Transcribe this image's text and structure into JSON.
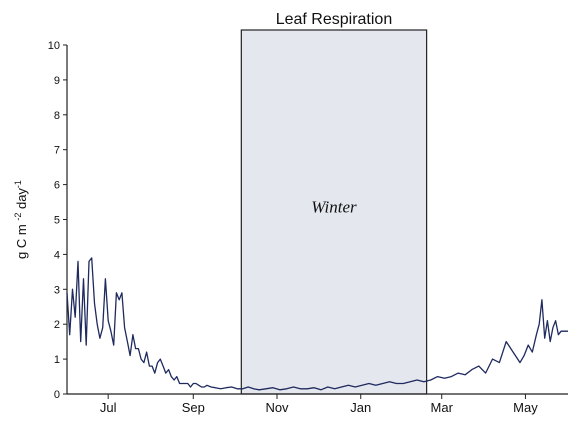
{
  "chart_data": {
    "type": "line",
    "title": "Leaf Respiration",
    "ylabel": "g C m -2 day -1",
    "ylabel_parts": {
      "main1": "g C m ",
      "exp1": "-2",
      "main2": " day",
      "exp2": "-1"
    },
    "xlabel": "",
    "ylim": [
      0,
      10
    ],
    "yticks": [
      "0",
      "1",
      "2",
      "3",
      "4",
      "5",
      "6",
      "7",
      "8",
      "9",
      "10"
    ],
    "xticklabels": [
      "Jul",
      "Sep",
      "Nov",
      "Jan",
      "Mar",
      "May"
    ],
    "xticks_day": [
      30,
      92,
      153,
      214,
      273,
      334
    ],
    "xlim_day": [
      0,
      365
    ],
    "grid": false,
    "legend": "none",
    "annotation": {
      "text": "Winter",
      "region_day": [
        127,
        262
      ],
      "fill": "#e4e7ee"
    },
    "series": [
      {
        "color": "#1f2a5e",
        "x_day": [
          0,
          2,
          4,
          6,
          8,
          10,
          12,
          14,
          16,
          18,
          20,
          22,
          24,
          26,
          28,
          30,
          32,
          34,
          36,
          38,
          40,
          42,
          44,
          46,
          48,
          50,
          52,
          54,
          56,
          58,
          60,
          62,
          64,
          66,
          68,
          70,
          72,
          74,
          76,
          78,
          80,
          82,
          84,
          86,
          88,
          90,
          92,
          94,
          96,
          98,
          100,
          102,
          105,
          108,
          112,
          116,
          120,
          124,
          128,
          132,
          136,
          140,
          145,
          150,
          155,
          160,
          165,
          170,
          175,
          180,
          185,
          190,
          195,
          200,
          205,
          210,
          215,
          220,
          225,
          230,
          235,
          240,
          245,
          250,
          255,
          260,
          265,
          270,
          275,
          280,
          285,
          290,
          295,
          300,
          305,
          310,
          315,
          320,
          325,
          330,
          333,
          336,
          339,
          342,
          344,
          346,
          348,
          350,
          352,
          354,
          356,
          358,
          360,
          362,
          365
        ],
        "values": [
          2.9,
          1.7,
          3.0,
          2.2,
          3.8,
          1.5,
          3.3,
          1.4,
          3.8,
          3.9,
          2.6,
          2.0,
          1.6,
          1.9,
          3.3,
          2.1,
          1.8,
          1.4,
          2.9,
          2.7,
          2.9,
          1.9,
          1.5,
          1.1,
          1.7,
          1.3,
          1.3,
          1.0,
          0.9,
          1.2,
          0.8,
          0.8,
          0.6,
          0.9,
          1.0,
          0.8,
          0.6,
          0.7,
          0.5,
          0.4,
          0.5,
          0.3,
          0.3,
          0.3,
          0.3,
          0.2,
          0.3,
          0.3,
          0.25,
          0.2,
          0.2,
          0.25,
          0.2,
          0.18,
          0.15,
          0.18,
          0.2,
          0.15,
          0.15,
          0.2,
          0.15,
          0.12,
          0.15,
          0.18,
          0.12,
          0.15,
          0.2,
          0.15,
          0.15,
          0.18,
          0.12,
          0.2,
          0.15,
          0.2,
          0.25,
          0.2,
          0.25,
          0.3,
          0.25,
          0.3,
          0.35,
          0.3,
          0.3,
          0.35,
          0.4,
          0.35,
          0.4,
          0.5,
          0.45,
          0.5,
          0.6,
          0.55,
          0.7,
          0.8,
          0.6,
          1.0,
          0.9,
          1.5,
          1.2,
          0.9,
          1.1,
          1.4,
          1.2,
          1.7,
          2.0,
          2.7,
          1.6,
          2.1,
          1.5,
          1.9,
          2.1,
          1.7,
          1.8,
          1.8,
          1.8
        ]
      }
    ]
  }
}
